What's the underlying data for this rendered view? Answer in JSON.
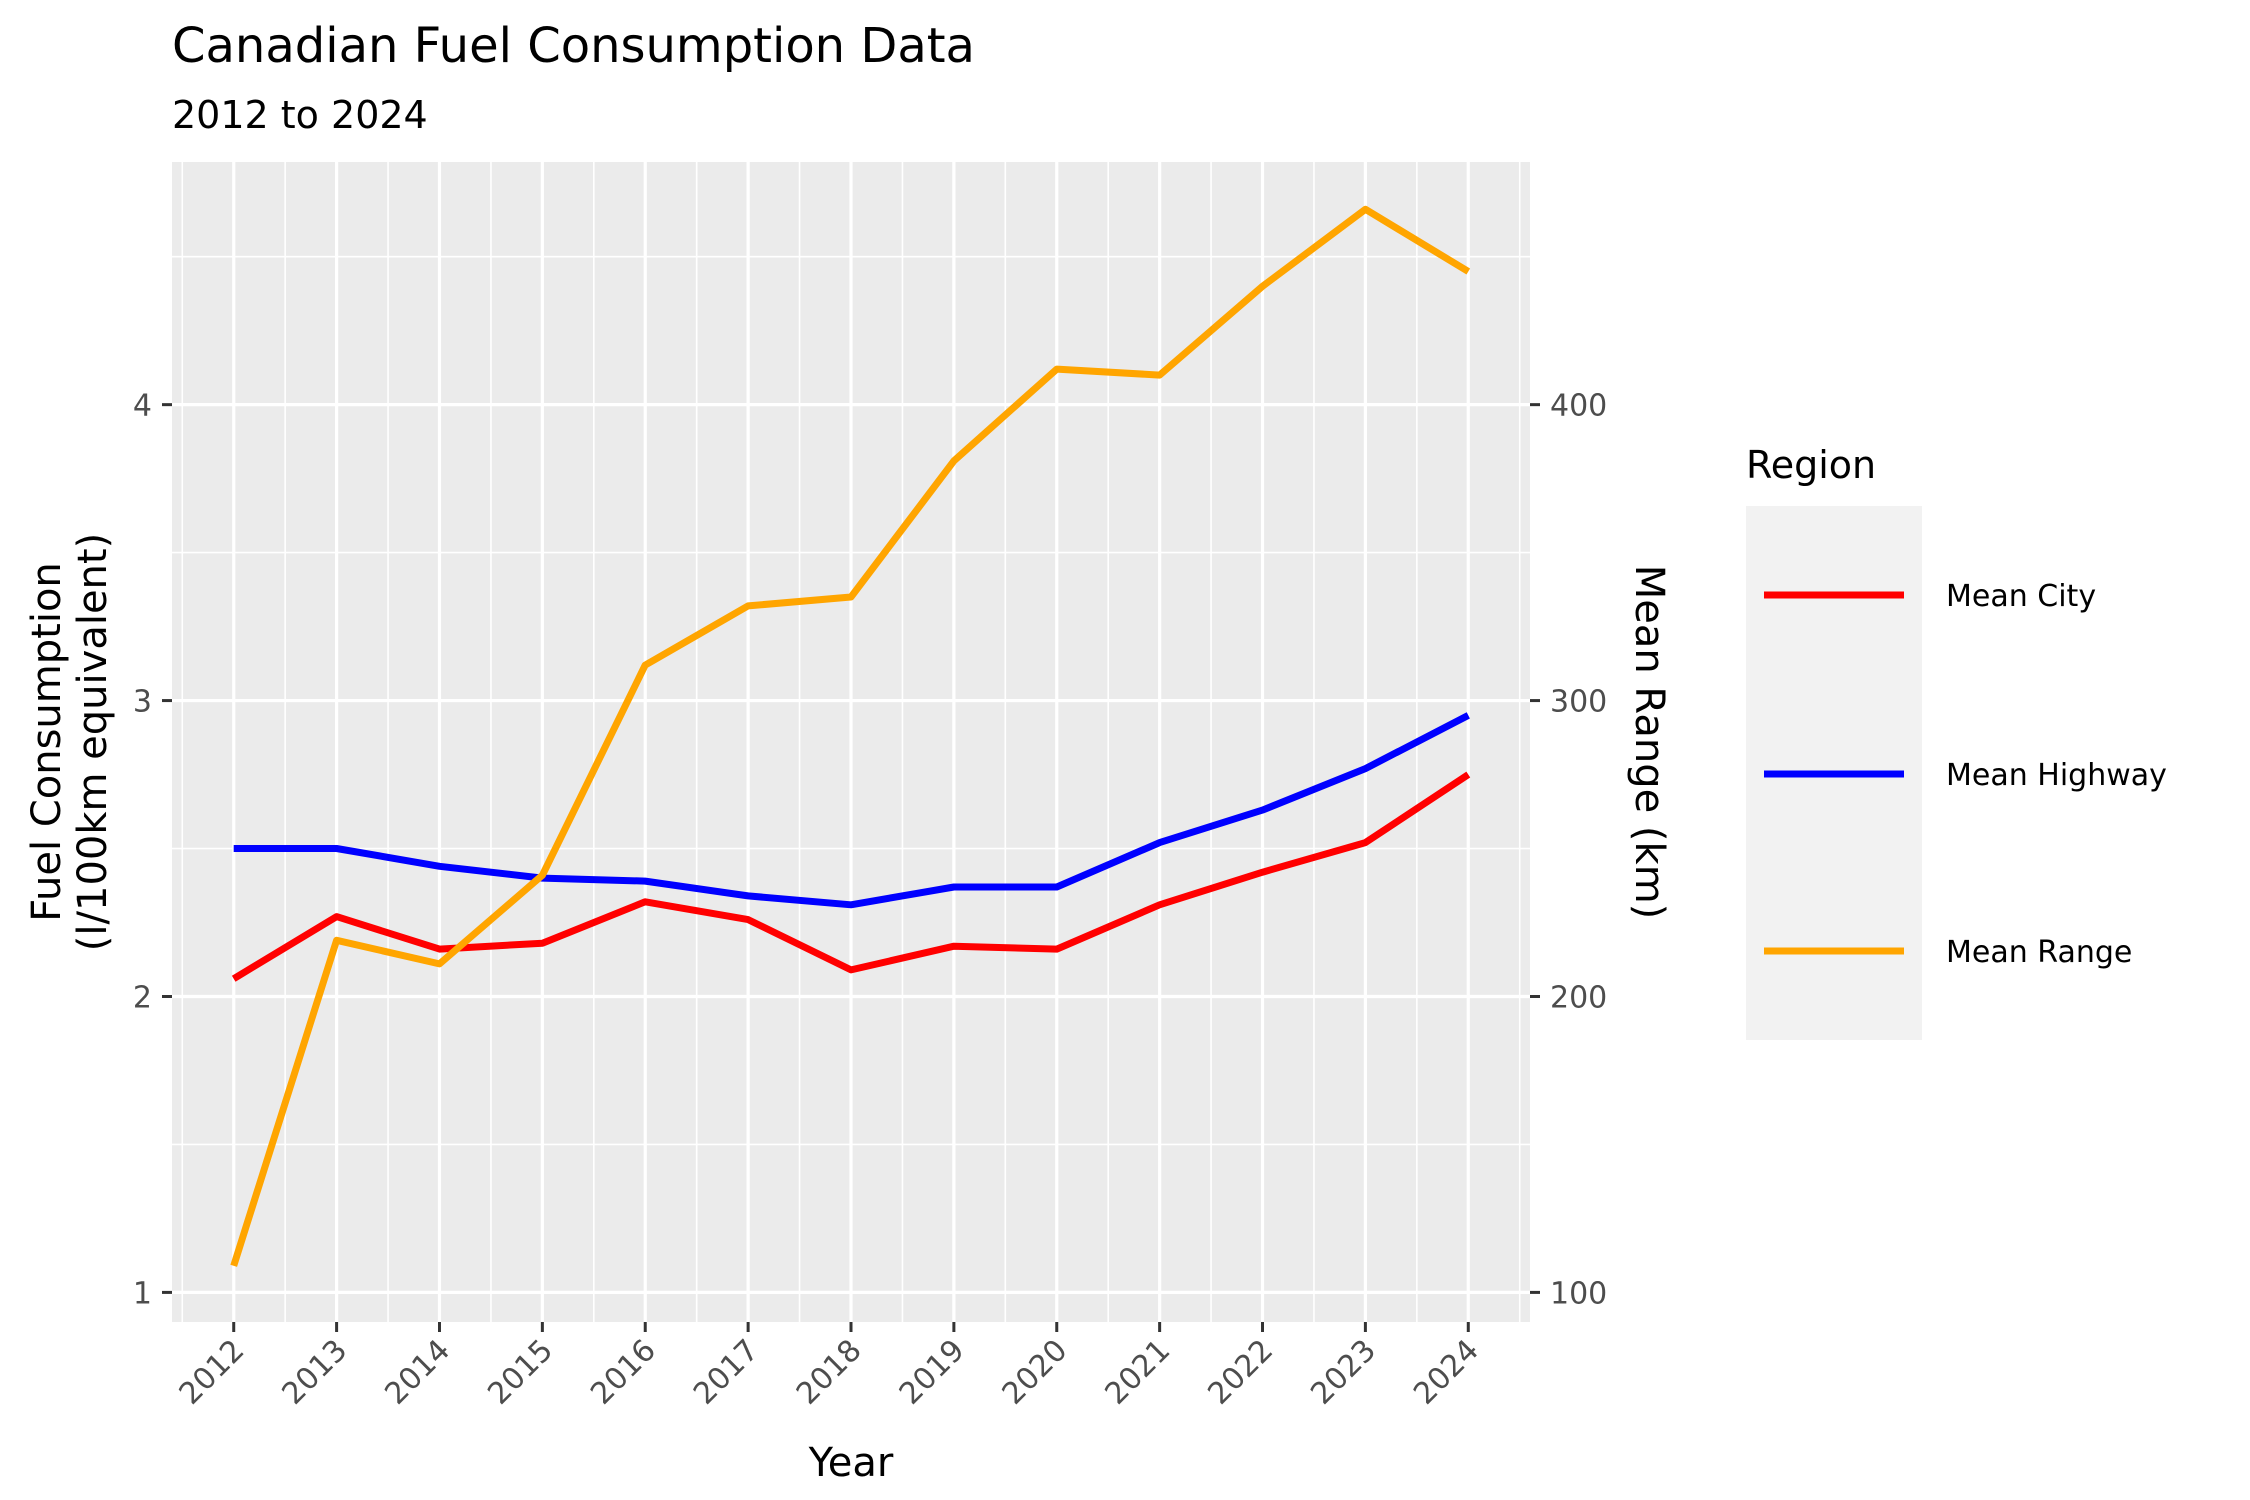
{
  "chart_data": {
    "type": "line",
    "title": "Canadian Fuel Consumption Data",
    "subtitle": "2012 to 2024",
    "xlabel": "Year",
    "ylabel_line1": "Fuel Consumption",
    "ylabel_line2": "(l/100km equivalent)",
    "y2label": "Mean Range (km)",
    "x": [
      2012,
      2013,
      2014,
      2015,
      2016,
      2017,
      2018,
      2019,
      2020,
      2021,
      2022,
      2023,
      2024
    ],
    "ylim": [
      0.9,
      4.82
    ],
    "y_ticks": [
      1,
      2,
      3,
      4
    ],
    "y2lim": [
      90,
      482
    ],
    "y2_ticks": [
      100,
      200,
      300,
      400
    ],
    "grid": true,
    "legend": {
      "title": "Region",
      "position": "right"
    },
    "series": [
      {
        "name": "Mean City",
        "axis": "left",
        "color": "#ff0000",
        "values": [
          2.06,
          2.27,
          2.16,
          2.18,
          2.32,
          2.26,
          2.09,
          2.17,
          2.16,
          2.31,
          2.42,
          2.52,
          2.75
        ]
      },
      {
        "name": "Mean Highway",
        "axis": "left",
        "color": "#0000ff",
        "values": [
          2.5,
          2.5,
          2.44,
          2.4,
          2.39,
          2.34,
          2.31,
          2.37,
          2.37,
          2.52,
          2.63,
          2.77,
          2.95
        ]
      },
      {
        "name": "Mean Range",
        "axis": "right",
        "color": "#ffa500",
        "values": [
          109,
          219,
          211,
          241,
          312,
          332,
          335,
          381,
          412,
          410,
          440,
          466,
          445
        ]
      }
    ]
  }
}
